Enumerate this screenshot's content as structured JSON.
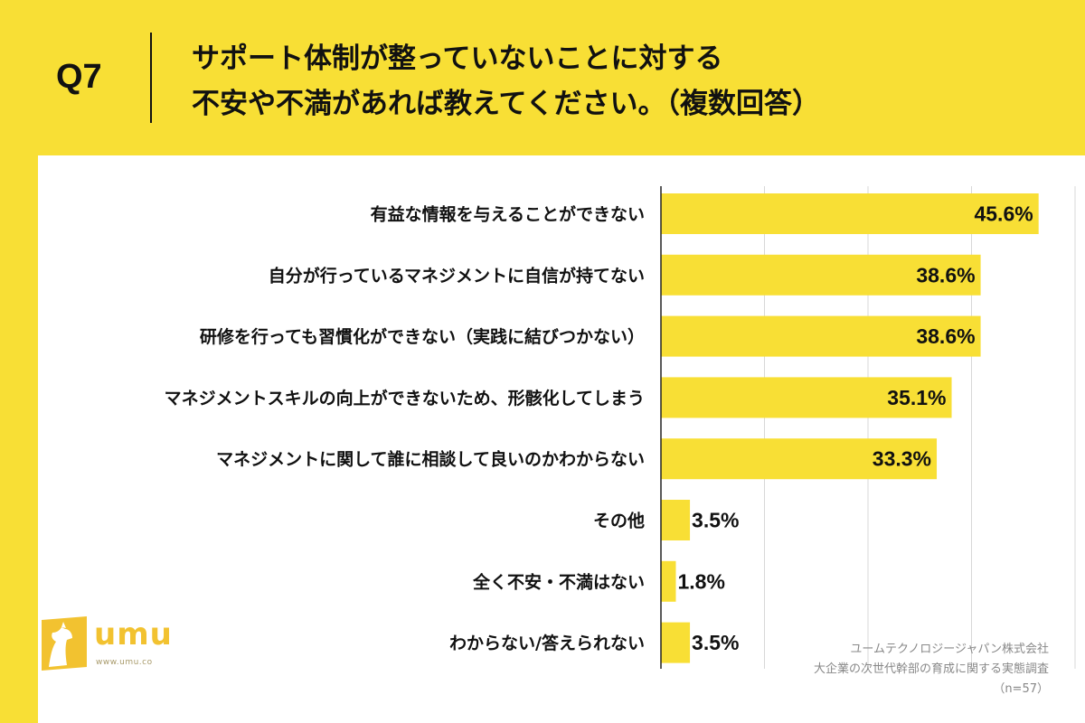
{
  "header": {
    "question_label": "Q7",
    "title_line1": "サポート体制が整っていないことに対する",
    "title_line2": "不安や不満があれば教えてください。（複数回答）"
  },
  "logo": {
    "text": "umu",
    "url": "www.umu.co"
  },
  "source": {
    "company": "ユームテクノロジージャパン株式会社",
    "survey": "大企業の次世代幹部の育成に関する実態調査",
    "sample": "（n=57）"
  },
  "colors": {
    "background": "#f8df35",
    "bar": "#f8df35",
    "panel": "#ffffff",
    "text": "#111111"
  },
  "chart_data": {
    "type": "bar",
    "orientation": "horizontal",
    "categories": [
      "有益な情報を与えることができない",
      "自分が行っているマネジメントに自信が持てない",
      "研修を行っても習慣化ができない（実践に結びつかない）",
      "マネジメントスキルの向上ができないため、形骸化してしまう",
      "マネジメントに関して誰に相談して良いのかわからない",
      "その他",
      "全く不安・不満はない",
      "わからない/答えられない"
    ],
    "values": [
      45.6,
      38.6,
      38.6,
      35.1,
      33.3,
      3.5,
      1.8,
      3.5
    ],
    "value_labels": [
      "45.6%",
      "38.6%",
      "38.6%",
      "35.1%",
      "33.3%",
      "3.5%",
      "1.8%",
      "3.5%"
    ],
    "xlim": [
      0,
      50
    ],
    "gridlines": [
      12.5,
      25,
      37.5,
      50
    ],
    "grid": true,
    "legend": false
  }
}
